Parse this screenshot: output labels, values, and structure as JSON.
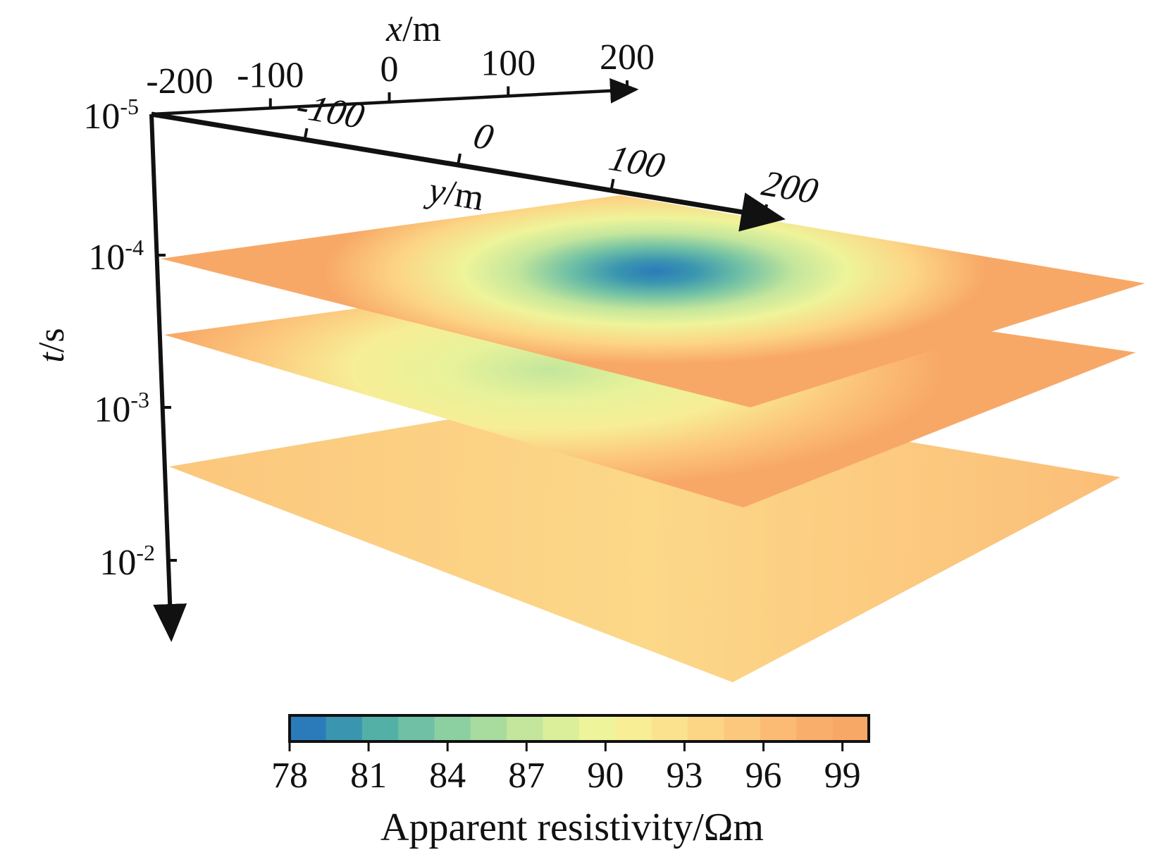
{
  "chart_data": {
    "type": "heatmap",
    "title": "",
    "x_axis": {
      "label_var": "x",
      "label_unit": "/m",
      "ticks": [
        "-200",
        "-100",
        "0",
        "100",
        "200"
      ],
      "tick_values": [
        -200,
        -100,
        0,
        100,
        200
      ],
      "range": [
        -200,
        200
      ]
    },
    "y_axis": {
      "label_var": "y",
      "label_unit": "/m",
      "ticks": [
        "-100",
        "0",
        "100",
        "200"
      ],
      "tick_values": [
        -100,
        0,
        100,
        200
      ],
      "range": [
        -200,
        200
      ]
    },
    "t_axis": {
      "label_var": "t",
      "label_unit": "/s",
      "scale": "log",
      "ticks": [
        {
          "base": "10",
          "exp": "-5",
          "value": 1e-05
        },
        {
          "base": "10",
          "exp": "-4",
          "value": 0.0001
        },
        {
          "base": "10",
          "exp": "-3",
          "value": 0.001
        },
        {
          "base": "10",
          "exp": "-2",
          "value": 0.01
        }
      ]
    },
    "slices": [
      {
        "time_s": 0.0001,
        "min_value": 78.5,
        "anomaly_center": {
          "x": 60,
          "y": 30
        },
        "background": 97
      },
      {
        "time_s": 0.0003,
        "min_value": 88,
        "anomaly_center": {
          "x": -10,
          "y": -20
        },
        "background": 96
      },
      {
        "time_s": 0.002,
        "min_value": 94,
        "anomaly_center": {
          "x": 0,
          "y": 0
        },
        "background": 95
      }
    ],
    "colorbar": {
      "title": "Apparent resistivity/Ωm",
      "min": 78,
      "max": 100,
      "ticks": [
        "78",
        "81",
        "84",
        "87",
        "90",
        "93",
        "96",
        "99"
      ],
      "tick_values": [
        78,
        81,
        84,
        87,
        90,
        93,
        96,
        99
      ],
      "colors": [
        "#2b7bba",
        "#3a95b0",
        "#52b0a7",
        "#6fc0a5",
        "#8cd0a2",
        "#a8dc9e",
        "#c3e69c",
        "#dbef9b",
        "#eef49a",
        "#f7ee96",
        "#fbe28e",
        "#fcd585",
        "#fcc87d",
        "#fbbb74",
        "#faae6c",
        "#f8a866"
      ]
    }
  }
}
